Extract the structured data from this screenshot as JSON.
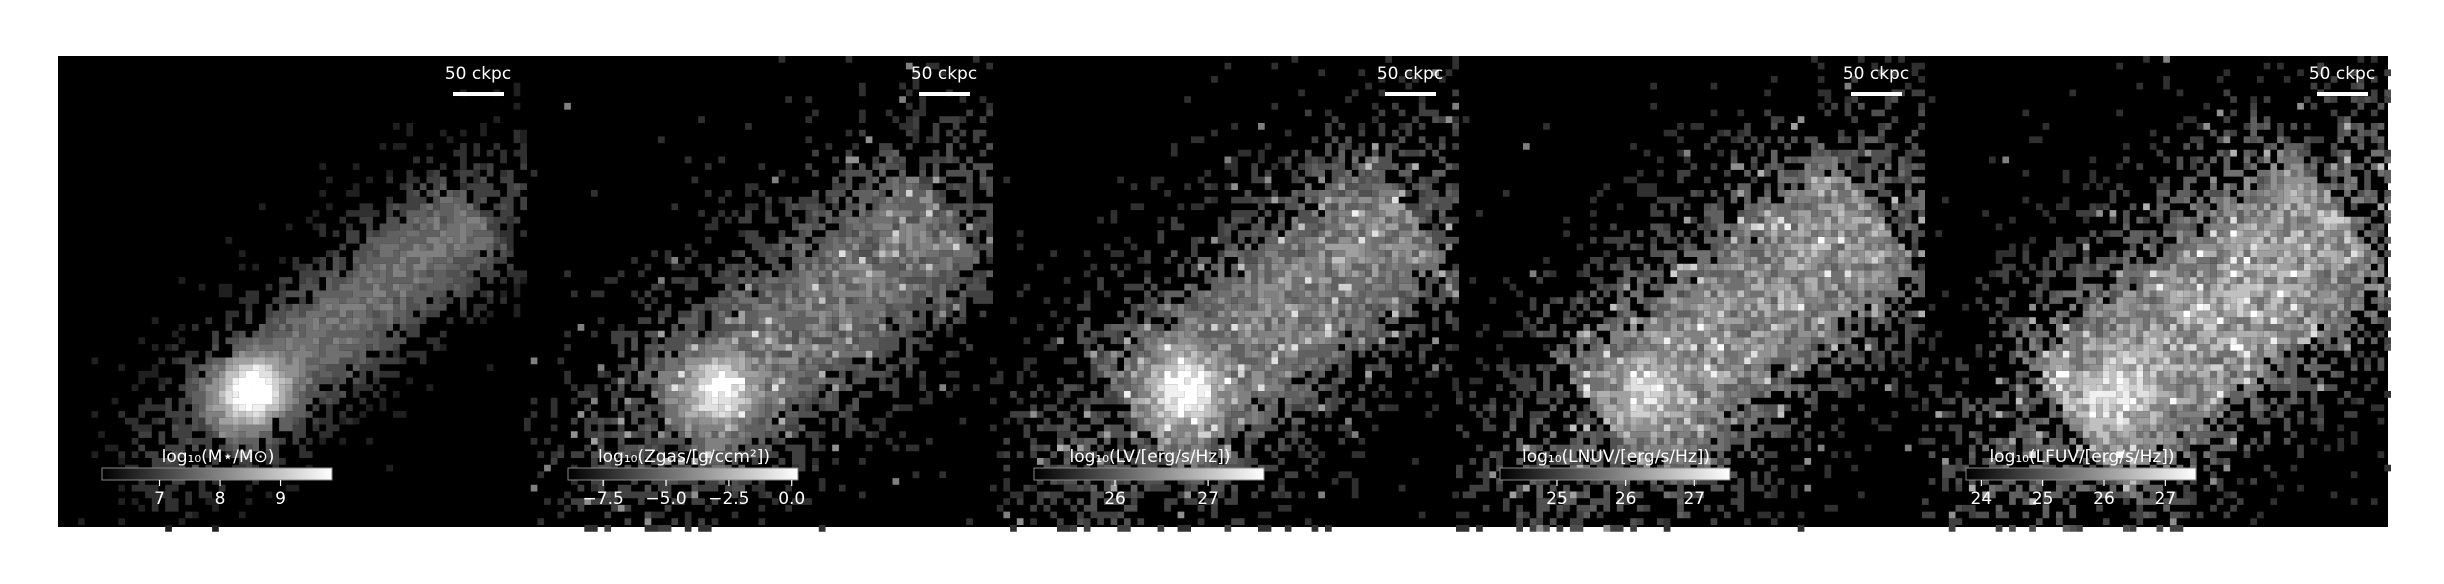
{
  "panels": [
    {
      "scale_bar_label": "50 ckpc",
      "colorbar": {
        "label": "log₁₀(M⋆/M⊙)",
        "lim": [
          6.05,
          9.85
        ],
        "ticks": [
          7,
          8,
          9
        ]
      }
    },
    {
      "scale_bar_label": "50 ckpc",
      "colorbar": {
        "label": "log₁₀(Zgas/[g/ccm²])",
        "lim": [
          -8.9,
          0.25
        ],
        "ticks": [
          {
            "value": -7.5,
            "label": "−7.5"
          },
          {
            "value": -5,
            "label": "−5.0"
          },
          {
            "value": -2.5,
            "label": "−2.5"
          },
          {
            "value": 0,
            "label": "0.0"
          }
        ]
      }
    },
    {
      "scale_bar_label": "50 ckpc",
      "colorbar": {
        "label": "log₁₀(LV/[erg/s/Hz])",
        "lim": [
          25.13,
          27.6
        ],
        "ticks": [
          26,
          27
        ]
      }
    },
    {
      "scale_bar_label": "50 ckpc",
      "colorbar": {
        "label": "log₁₀(LNUV/[erg/s/Hz])",
        "lim": [
          24.17,
          27.52
        ],
        "ticks": [
          25,
          26,
          27
        ]
      }
    },
    {
      "scale_bar_label": "50 ckpc",
      "colorbar": {
        "label": "log₁₀(LFUV/[erg/s/Hz])",
        "lim": [
          23.75,
          27.5
        ],
        "ticks": [
          24,
          25,
          26,
          27
        ]
      }
    }
  ]
}
